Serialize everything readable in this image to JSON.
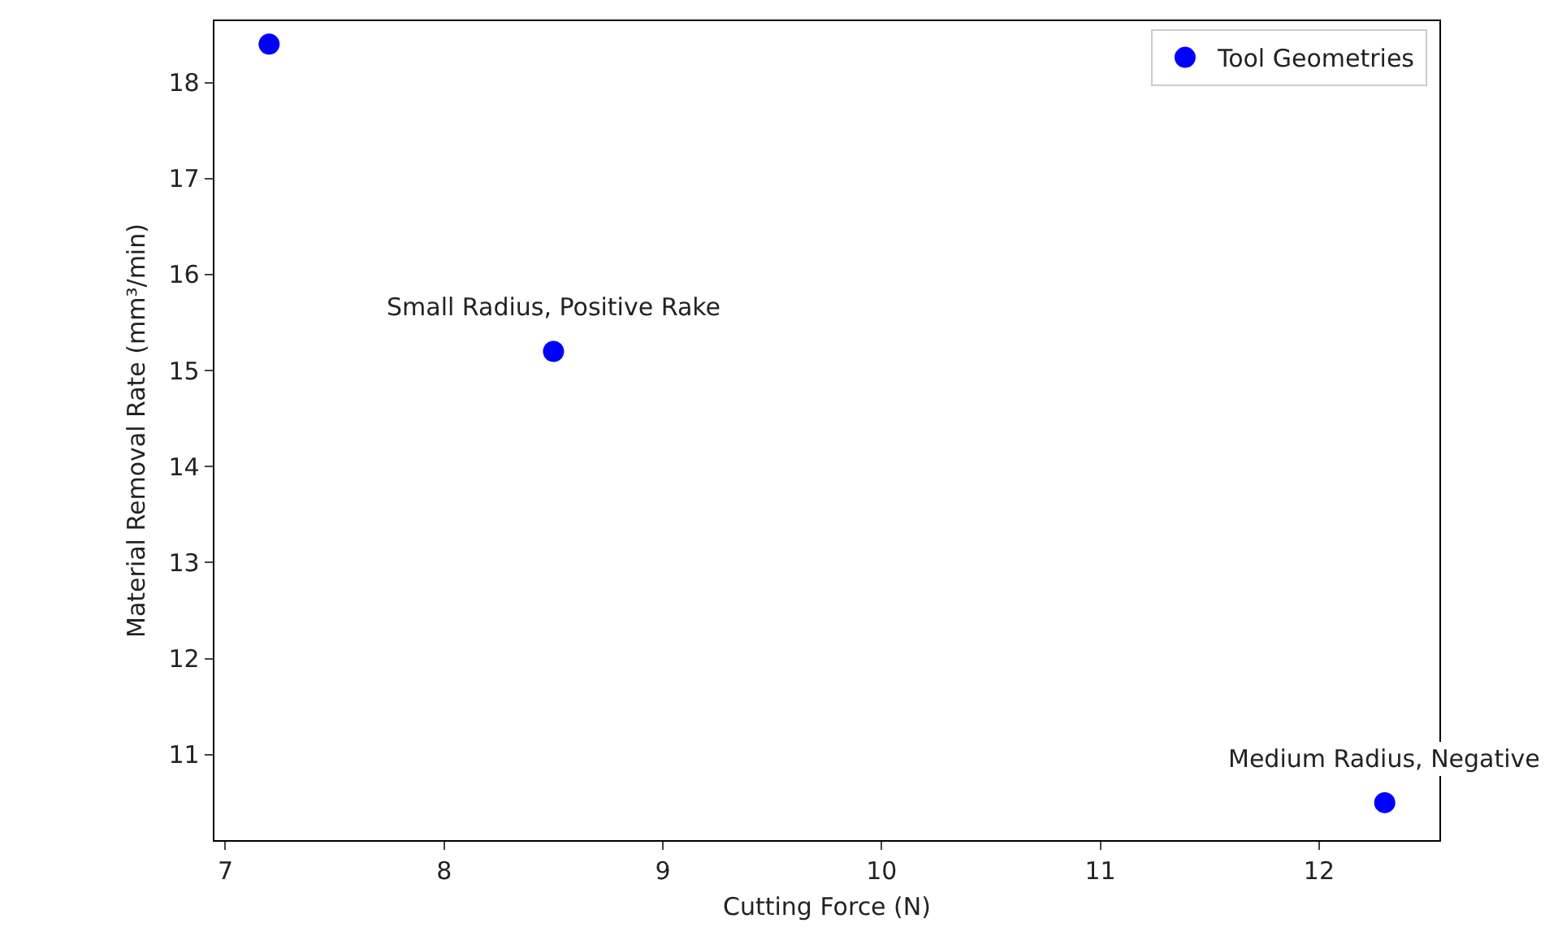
{
  "chart_data": {
    "type": "scatter",
    "xlabel": "Cutting Force (N)",
    "ylabel": "Material Removal Rate (mm³/min)",
    "x": [
      7.2,
      8.5,
      12.3
    ],
    "series": [
      {
        "name": "Tool Geometries",
        "color": "#0000ff",
        "values": [
          18.4,
          15.2,
          10.5
        ]
      }
    ],
    "annotations": [
      {
        "text": "Small Radius, Positive Rake",
        "x": 8.5,
        "y": 15.2
      },
      {
        "text": "Medium Radius, Negative",
        "x": 12.3,
        "y": 10.5
      }
    ],
    "xlim": [
      6.95,
      12.55
    ],
    "xticks": [
      7,
      8,
      9,
      10,
      11,
      12
    ],
    "ylim": [
      10.11,
      18.64
    ],
    "yticks": [
      11,
      12,
      13,
      14,
      15,
      16,
      17,
      18
    ],
    "marker": "circle",
    "legend": "top right"
  }
}
